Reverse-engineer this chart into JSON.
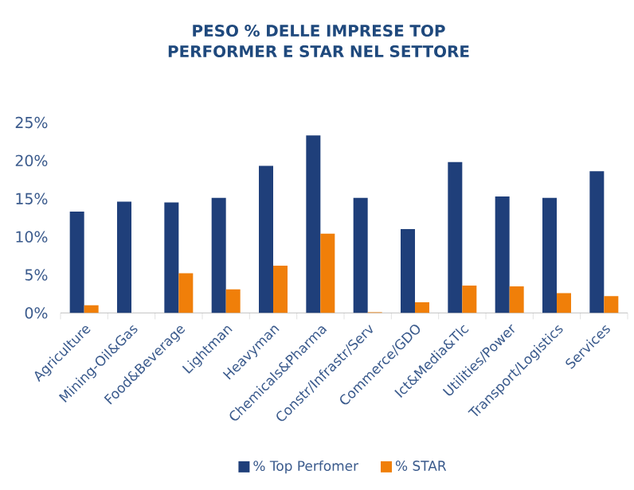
{
  "chart_data": {
    "type": "bar",
    "title": "PESO % DELLE IMPRESE TOP PERFORMER E STAR NEL SETTORE",
    "categories": [
      "Agriculture",
      "Mining-Oil&Gas",
      "Food&Beverage",
      "Lightman",
      "Heavyman",
      "Chemicals&Pharma",
      "Constr/Infrastr/Serv",
      "Commerce/GDO",
      "Ict&Media&Tlc",
      "Utilities/Power",
      "Transport/Logistics",
      "Services"
    ],
    "series": [
      {
        "name": "% Top Perfomer",
        "color": "#1f3f7a",
        "values": [
          13.3,
          14.6,
          14.5,
          15.1,
          19.3,
          23.3,
          15.1,
          11.0,
          19.8,
          15.3,
          15.1,
          18.6
        ]
      },
      {
        "name": "% STAR",
        "color": "#f07f09",
        "values": [
          1.0,
          0,
          5.2,
          3.1,
          6.2,
          10.4,
          0.1,
          1.4,
          3.6,
          3.5,
          2.6,
          2.2
        ]
      }
    ],
    "ylim": [
      0,
      25
    ],
    "yticks": [
      {
        "value": 0,
        "label": "0%"
      },
      {
        "value": 5,
        "label": "5%"
      },
      {
        "value": 10,
        "label": "10%"
      },
      {
        "value": 15,
        "label": "15%"
      },
      {
        "value": 20,
        "label": "20%"
      },
      {
        "value": 25,
        "label": "25%"
      }
    ],
    "legend": "bottom"
  }
}
